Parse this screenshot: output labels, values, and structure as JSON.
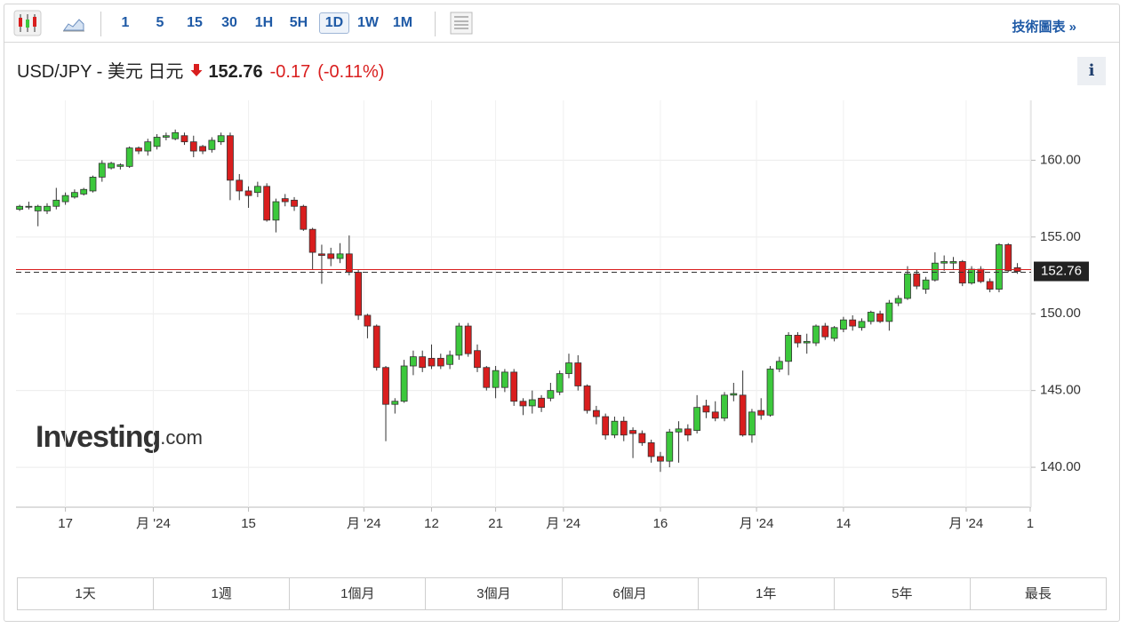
{
  "toolbar": {
    "intervals": [
      "1",
      "5",
      "15",
      "30",
      "1H",
      "5H",
      "1D",
      "1W",
      "1M"
    ],
    "active": "1D",
    "technical_link": "技術圖表 »"
  },
  "header": {
    "title": "USD/JPY - 美元 日元",
    "price": "152.76",
    "change": "-0.17",
    "change_percent": "(-0.11%)",
    "info": "i"
  },
  "watermark": {
    "brand": "Investing",
    "suffix": ".com"
  },
  "ranges": [
    "1天",
    "1週",
    "1個月",
    "3個月",
    "6個月",
    "1年",
    "5年",
    "最長"
  ],
  "chart_data": {
    "type": "candlestick",
    "up_color": "#3cc83c",
    "down_color": "#d91e1e",
    "open": [
      156.8,
      157.0,
      156.7,
      156.7,
      157.0,
      157.3,
      157.6,
      157.8,
      158.0,
      158.9,
      159.5,
      159.6,
      159.6,
      160.8,
      160.6,
      160.9,
      161.5,
      161.4,
      161.6,
      161.2,
      160.9,
      160.7,
      161.2,
      161.6,
      158.7,
      158.0,
      157.9,
      158.3,
      156.1,
      157.5,
      157.4,
      157.0,
      155.5,
      153.9,
      153.9,
      153.6,
      153.9,
      152.7,
      149.9,
      149.2,
      146.5,
      144.1,
      144.3,
      146.6,
      147.2,
      147.1,
      147.1,
      146.7,
      147.3,
      149.2,
      147.6,
      146.5,
      145.2,
      145.2,
      146.2,
      144.3,
      144.0,
      144.5,
      144.5,
      144.9,
      146.1,
      146.8,
      145.3,
      143.7,
      143.3,
      142.1,
      143.0,
      142.4,
      142.2,
      141.6,
      140.7,
      140.4,
      142.3,
      142.5,
      142.4,
      144.0,
      143.6,
      143.2,
      144.7,
      144.7,
      142.1,
      143.7,
      143.4,
      146.4,
      146.9,
      148.6,
      148.1,
      148.1,
      149.2,
      148.4,
      149.0,
      149.6,
      149.1,
      149.5,
      150.0,
      149.5,
      150.7,
      151.0,
      152.6,
      151.6,
      152.2,
      153.3,
      153.3,
      153.4,
      152.0,
      152.9,
      152.1,
      151.6,
      154.5,
      153.0
    ],
    "high": [
      157.1,
      157.3,
      157.1,
      157.2,
      158.2,
      157.9,
      158.1,
      158.2,
      159.0,
      160.0,
      159.9,
      159.8,
      160.9,
      160.9,
      161.4,
      161.7,
      161.8,
      162.0,
      161.8,
      161.6,
      161.0,
      161.5,
      161.8,
      161.8,
      159.1,
      158.3,
      158.6,
      158.5,
      157.5,
      157.8,
      157.6,
      157.1,
      155.6,
      154.5,
      154.3,
      154.6,
      155.1,
      152.9,
      150.0,
      149.3,
      146.6,
      144.5,
      147.0,
      147.6,
      147.6,
      148.0,
      147.4,
      147.6,
      149.4,
      149.4,
      148.0,
      146.6,
      146.6,
      146.4,
      146.4,
      144.5,
      145.0,
      144.7,
      145.5,
      146.3,
      147.4,
      147.3,
      145.4,
      144.0,
      143.5,
      143.3,
      143.3,
      142.6,
      142.4,
      141.8,
      141.0,
      142.5,
      143.0,
      142.8,
      144.7,
      144.4,
      144.3,
      144.9,
      145.5,
      146.3,
      143.8,
      144.5,
      146.6,
      147.2,
      148.8,
      148.8,
      148.7,
      149.3,
      149.4,
      149.2,
      149.8,
      149.9,
      149.7,
      150.2,
      150.2,
      150.9,
      151.2,
      153.1,
      152.9,
      152.4,
      154.0,
      153.8,
      153.7,
      153.5,
      153.1,
      153.1,
      152.3,
      154.6,
      154.6,
      153.3
    ],
    "low": [
      156.7,
      156.8,
      155.7,
      156.5,
      156.8,
      157.1,
      157.5,
      157.7,
      157.9,
      158.6,
      159.4,
      159.4,
      159.5,
      160.4,
      160.3,
      160.7,
      161.3,
      161.3,
      161.0,
      160.2,
      160.4,
      160.5,
      161.0,
      157.4,
      157.4,
      156.9,
      157.6,
      156.0,
      155.3,
      157.0,
      156.7,
      155.4,
      152.9,
      151.95,
      153.1,
      153.3,
      152.5,
      149.6,
      148.4,
      146.3,
      141.7,
      143.5,
      144.2,
      146.0,
      146.2,
      146.4,
      146.4,
      146.4,
      147.0,
      147.2,
      146.2,
      145.0,
      144.5,
      144.9,
      144.0,
      143.4,
      143.5,
      143.6,
      144.3,
      144.7,
      145.8,
      145.0,
      143.5,
      142.8,
      141.8,
      141.9,
      141.7,
      140.6,
      141.4,
      140.3,
      139.7,
      140.0,
      140.3,
      141.7,
      142.2,
      143.2,
      143.0,
      143.0,
      144.3,
      142.0,
      141.6,
      143.1,
      143.3,
      146.2,
      146.0,
      147.8,
      147.4,
      147.9,
      148.3,
      148.2,
      148.8,
      148.9,
      148.9,
      149.3,
      149.4,
      148.9,
      150.5,
      150.9,
      151.6,
      151.3,
      152.1,
      152.8,
      152.9,
      151.8,
      151.9,
      152.0,
      151.4,
      151.4,
      152.7,
      152.6
    ],
    "close": [
      157.0,
      157.0,
      157.0,
      157.0,
      157.4,
      157.7,
      157.9,
      158.1,
      158.9,
      159.8,
      159.8,
      159.7,
      160.8,
      160.6,
      161.2,
      161.5,
      161.6,
      161.8,
      161.2,
      160.6,
      160.6,
      161.3,
      161.6,
      158.7,
      158.0,
      157.7,
      158.3,
      156.1,
      157.3,
      157.3,
      157.0,
      155.5,
      154.0,
      153.8,
      153.6,
      153.9,
      152.7,
      149.9,
      149.2,
      146.5,
      144.1,
      144.3,
      146.6,
      147.2,
      146.5,
      146.6,
      146.6,
      147.3,
      149.2,
      147.4,
      146.5,
      145.2,
      146.3,
      146.2,
      144.3,
      144.0,
      144.4,
      143.9,
      145.0,
      146.1,
      146.8,
      145.3,
      143.7,
      143.3,
      142.1,
      143.0,
      142.1,
      142.2,
      141.6,
      140.7,
      140.4,
      142.3,
      142.5,
      142.1,
      143.9,
      143.6,
      143.2,
      144.7,
      144.8,
      142.1,
      143.6,
      143.4,
      146.4,
      146.9,
      148.6,
      148.1,
      148.2,
      149.2,
      148.5,
      149.1,
      149.6,
      149.2,
      149.5,
      150.1,
      149.5,
      150.7,
      151.0,
      152.6,
      151.8,
      152.2,
      153.3,
      153.4,
      153.4,
      152.0,
      152.9,
      152.1,
      151.6,
      154.5,
      152.8,
      152.76
    ],
    "current_price": 152.76,
    "xlim": [
      -0.4,
      110.5
    ],
    "xticks": [
      {
        "value": 5,
        "label": "17"
      },
      {
        "value": 14.6,
        "label": "月 '24"
      },
      {
        "value": 25,
        "label": "15"
      },
      {
        "value": 37.6,
        "label": "月 '24"
      },
      {
        "value": 45,
        "label": "12"
      },
      {
        "value": 52,
        "label": "21"
      },
      {
        "value": 59.4,
        "label": "月 '24"
      },
      {
        "value": 70,
        "label": "16"
      },
      {
        "value": 80.5,
        "label": "月 '24"
      },
      {
        "value": 90,
        "label": "14"
      },
      {
        "value": 103.4,
        "label": "月 '24"
      },
      {
        "value": 110.4,
        "label": "1"
      }
    ],
    "ylim": [
      137.4,
      163.9
    ],
    "yticks": [
      {
        "value": 140,
        "label": "140.00"
      },
      {
        "value": 145,
        "label": "145.00"
      },
      {
        "value": 150,
        "label": "150.00"
      },
      {
        "value": 155,
        "label": "155.00"
      },
      {
        "value": 160,
        "label": "160.00"
      }
    ],
    "grid": true
  }
}
